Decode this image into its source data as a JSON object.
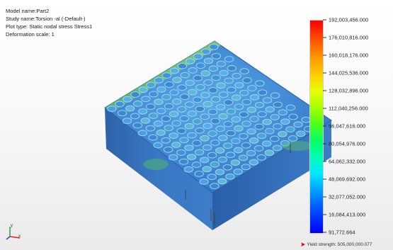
{
  "study_info": {
    "model_name": "Model name:Part2",
    "study_name": "Study name:Torsion -al (-Default-)",
    "plot_type": "Plot type: Static nodal stress Stress1",
    "deformation_scale": "Deformation scale: 1"
  },
  "legend": {
    "ticks": [
      "192,003,456.000",
      "176,010,816.000",
      "160,018,176.000",
      "144,025,536.000",
      "128,032,896.000",
      "112,040,256.000",
      "96,047,616.000",
      "80,054,976.000",
      "64,062,332.000",
      "48,069,692.000",
      "32,077,052.000",
      "16,084,413.000",
      "91,772.664"
    ],
    "yield_strength": "Yield strength: 505,000,000.077",
    "colors": {
      "max": "#ff0000",
      "high": "#ff9c00",
      "mid_high": "#e8ff00",
      "mid": "#4cff1c",
      "mid_low": "#00ffb0",
      "low": "#00a0ff",
      "min": "#0000ff",
      "yield_arrow": "#cc0000"
    }
  },
  "model": {
    "description_icon": "honeycomb-plate-stress-plot",
    "grid_rows": 14,
    "grid_cols": 14
  },
  "triad": {
    "axis_labels": [
      "x",
      "y"
    ]
  }
}
